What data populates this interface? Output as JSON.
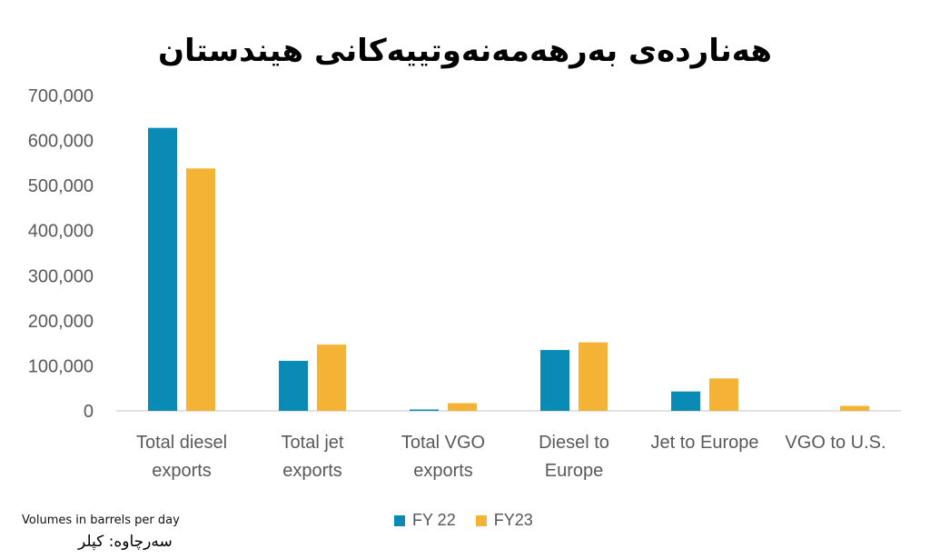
{
  "chart_data": {
    "type": "bar",
    "title": "هەناردەی بەرهەمەنەوتییەکانی هیندستان",
    "categories": [
      [
        "Total diesel",
        "exports"
      ],
      [
        "Total jet",
        "exports"
      ],
      [
        "Total VGO",
        "exports"
      ],
      [
        "Diesel to",
        "Europe"
      ],
      [
        "Jet to Europe"
      ],
      [
        "VGO to U.S."
      ]
    ],
    "series": [
      {
        "name": "FY 22",
        "color": "#0a8bb5",
        "values": [
          628000,
          111000,
          3000,
          135000,
          43000,
          0
        ]
      },
      {
        "name": "FY23",
        "color": "#f5b335",
        "values": [
          538000,
          147000,
          17000,
          152000,
          72000,
          11000
        ]
      }
    ],
    "yticks": [
      "0",
      "100,000",
      "200,000",
      "300,000",
      "400,000",
      "500,000",
      "600,000",
      "700,000"
    ],
    "ylim": [
      0,
      700000
    ],
    "legend_position": "bottom",
    "grid": false
  },
  "note": "Volumes in barrels per day",
  "source": "سەرچاوە: کپلر"
}
